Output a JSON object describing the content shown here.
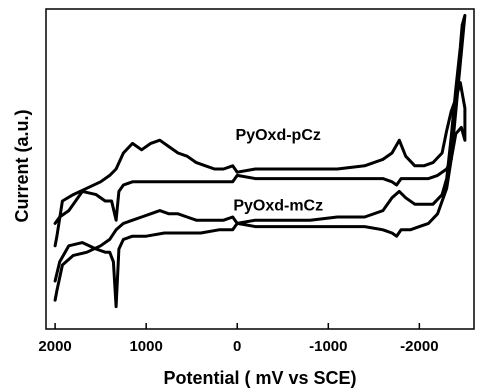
{
  "chart_data": {
    "type": "line",
    "title": "",
    "xlabel": "Potential ( mV vs SCE)",
    "ylabel": "Current (a.u.)",
    "xlim": [
      2100,
      -2600
    ],
    "ylim": [
      0,
      100
    ],
    "x_reversed": true,
    "x_ticks": [
      2000,
      1000,
      0,
      -1000,
      -2000
    ],
    "x_tick_labels": [
      "2000",
      "1000",
      "0",
      "-1000",
      "-2000"
    ],
    "y_ticks_labeled": false,
    "grid": false,
    "legend": "none",
    "series": [
      {
        "label": "PyOxd-pCz",
        "label_x": -450,
        "label_y": 59,
        "x": [
          2000,
          1980,
          1920,
          1800,
          1650,
          1500,
          1400,
          1330,
          1250,
          1150,
          1050,
          950,
          850,
          750,
          650,
          550,
          450,
          350,
          250,
          150,
          50,
          0,
          -200,
          -500,
          -800,
          -1100,
          -1400,
          -1600,
          -1700,
          -1780,
          -1850,
          -1950,
          -2050,
          -2150,
          -2250,
          -2300,
          -2350,
          -2400,
          -2450,
          -2500,
          -2500,
          -2460,
          -2400,
          -2350,
          -2300,
          -2200,
          -2100,
          -2000,
          -1900,
          -1800,
          -1750,
          -1700,
          -1600,
          -1400,
          -1100,
          -800,
          -500,
          -200,
          0,
          50,
          200,
          400,
          600,
          800,
          1000,
          1150,
          1250,
          1300,
          1330,
          1380,
          1450,
          1550,
          1700,
          1850,
          1950,
          2000
        ],
        "y": [
          26,
          29,
          40,
          42,
          44,
          46,
          48,
          50,
          55,
          58,
          56,
          58,
          59,
          57,
          55,
          54,
          52,
          51,
          50,
          50,
          51,
          49,
          50,
          50,
          50,
          50,
          51,
          53,
          55,
          59,
          54,
          51,
          51,
          52,
          55,
          62,
          68,
          72,
          77,
          69,
          59,
          63,
          61,
          53,
          50,
          48,
          47,
          47,
          47,
          47,
          45,
          46,
          47,
          47,
          47,
          47,
          47,
          47,
          48,
          46,
          46,
          46,
          46,
          46,
          46,
          46,
          45,
          43,
          34,
          40,
          40,
          42,
          43,
          37,
          35,
          33
        ]
      },
      {
        "label": "PyOxd-mCz",
        "label_x": -450,
        "label_y": 37,
        "x": [
          2000,
          1980,
          1920,
          1800,
          1650,
          1500,
          1400,
          1330,
          1250,
          1150,
          1050,
          950,
          850,
          750,
          650,
          550,
          450,
          350,
          250,
          150,
          50,
          0,
          -200,
          -500,
          -800,
          -1100,
          -1400,
          -1600,
          -1700,
          -1780,
          -1850,
          -1950,
          -2050,
          -2150,
          -2250,
          -2300,
          -2350,
          -2400,
          -2450,
          -2470,
          -2500,
          -2450,
          -2400,
          -2350,
          -2300,
          -2200,
          -2100,
          -2000,
          -1900,
          -1800,
          -1750,
          -1700,
          -1600,
          -1400,
          -1100,
          -800,
          -500,
          -200,
          0,
          50,
          200,
          400,
          600,
          800,
          1000,
          1150,
          1250,
          1300,
          1330,
          1360,
          1400,
          1450,
          1550,
          1700,
          1850,
          1950,
          2000
        ],
        "y": [
          9,
          12,
          20,
          23,
          24,
          26,
          28,
          31,
          33,
          34,
          35,
          36,
          37,
          36,
          36,
          35,
          34,
          34,
          34,
          34,
          35,
          33,
          34,
          34,
          34,
          35,
          35,
          37,
          41,
          43,
          41,
          39,
          39,
          39,
          42,
          47,
          60,
          75,
          88,
          95,
          98,
          83,
          68,
          53,
          44,
          36,
          33,
          32,
          31,
          31,
          29,
          30,
          31,
          32,
          32,
          32,
          32,
          32,
          33,
          31,
          31,
          30,
          30,
          30,
          29,
          29,
          28,
          25,
          7,
          21,
          24,
          24,
          25,
          27,
          26,
          21,
          15
        ]
      }
    ]
  }
}
